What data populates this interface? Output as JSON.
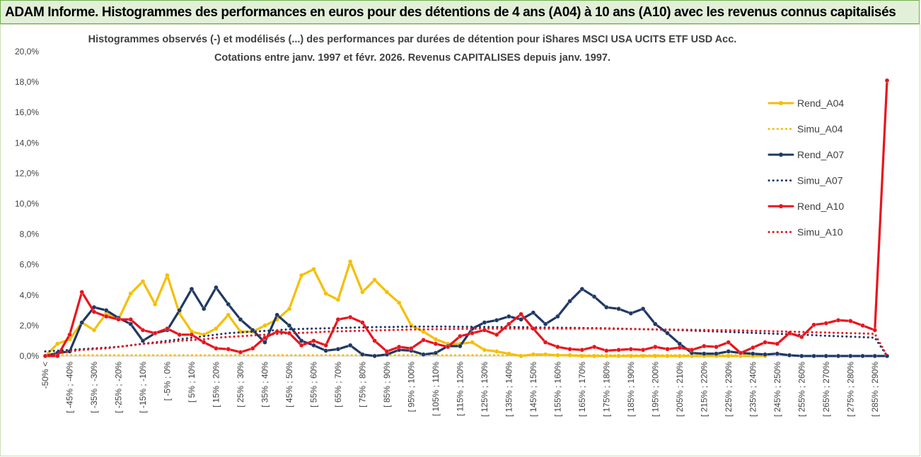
{
  "header": {
    "title": "ADAM Informe. Histogrammes des performances en euros pour des détentions de 4 ans (A04) à 10 ans (A10) avec les revenus connus capitalisés"
  },
  "chart_data": {
    "type": "line",
    "title": "Histogrammes observés (-) et modélisés (...) des performances par durées de détention pour iShares MSCI USA UCITS ETF USD Acc.",
    "subtitle": "Cotations entre janv. 1997 et févr. 2026. Revenus CAPITALISES depuis janv. 1997.",
    "categories": [
      "-50% <",
      null,
      "[ -45% ; -40%",
      null,
      "[ -35% ; -30%",
      null,
      "[ -25% ; -20%",
      null,
      "[ -15% ; -10%",
      null,
      "[ -5% ; 0%",
      null,
      "[ 5% ; 10%",
      null,
      "[ 15% ; 20%",
      null,
      "[ 25% ; 30%",
      null,
      "[ 35% ; 40%",
      null,
      "[ 45% ; 50%",
      null,
      "[ 55% ; 60%",
      null,
      "[ 65% ; 70%",
      null,
      "[ 75% ; 80%",
      null,
      "[ 85% ; 90%",
      null,
      "[ 95% ; 100%",
      null,
      "[ 105% ; 110%",
      null,
      "[ 115% ; 120%",
      null,
      "[ 125% ; 130%",
      null,
      "[ 135% ; 140%",
      null,
      "[ 145% ; 150%",
      null,
      "[ 155% ; 160%",
      null,
      "[ 165% ; 170%",
      null,
      "[ 175% ; 180%",
      null,
      "[ 185% ; 190%",
      null,
      "[ 195% ; 200%",
      null,
      "[ 205% ; 210%",
      null,
      "[ 215% ; 220%",
      null,
      "[ 225% ; 230%",
      null,
      "[ 235% ; 240%",
      null,
      "[ 245% ; 250%",
      null,
      "[ 255% ; 260%",
      null,
      "[ 265% ; 270%",
      null,
      "[ 275% ; 280%",
      null,
      "[ 285% ; 290%",
      null
    ],
    "ylim": [
      0,
      20
    ],
    "yticks": [
      {
        "value": 0,
        "label": "0,0%"
      },
      {
        "value": 2,
        "label": "2,0%"
      },
      {
        "value": 4,
        "label": "4,0%"
      },
      {
        "value": 6,
        "label": "6,0%"
      },
      {
        "value": 8,
        "label": "8,0%"
      },
      {
        "value": 10,
        "label": "10,0%"
      },
      {
        "value": 12,
        "label": "12,0%"
      },
      {
        "value": 14,
        "label": "14,0%"
      },
      {
        "value": 16,
        "label": "16,0%"
      },
      {
        "value": 18,
        "label": "18,0%"
      },
      {
        "value": 20,
        "label": "20,0%"
      }
    ],
    "grid": false,
    "legend": "right",
    "series": [
      {
        "name": "Rend_A04",
        "color": "#f5be00",
        "line_style": "solid",
        "markers": true,
        "values": [
          0.0,
          0.8,
          1.1,
          2.2,
          1.7,
          2.8,
          2.4,
          4.1,
          4.9,
          3.4,
          5.3,
          2.8,
          1.6,
          1.4,
          1.8,
          2.7,
          1.6,
          1.6,
          2.0,
          2.4,
          3.1,
          5.3,
          5.7,
          4.1,
          3.7,
          6.2,
          4.2,
          5.0,
          4.2,
          3.5,
          2.0,
          1.6,
          1.1,
          0.8,
          0.8,
          0.9,
          0.4,
          0.3,
          0.15,
          0.0,
          0.1,
          0.1,
          0.05,
          0.05,
          0.0,
          0.0,
          0.0,
          0.0,
          0.0,
          0.0,
          0.0,
          0.0,
          0.0,
          0.0,
          0.0,
          0.0,
          0.0,
          0.0,
          0.0,
          0.0,
          null,
          null,
          null,
          null,
          null,
          null,
          null,
          null,
          null,
          null
        ]
      },
      {
        "name": "Simu_A04",
        "color": "#f5be00",
        "line_style": "dotted",
        "markers": false,
        "values": [
          0.05,
          0.05,
          0.05,
          0.05,
          0.05,
          0.05,
          0.05,
          0.05,
          0.05,
          0.05,
          0.05,
          0.05,
          0.05,
          0.05,
          0.05,
          0.05,
          0.05,
          0.05,
          0.05,
          0.05,
          0.05,
          0.05,
          0.05,
          0.05,
          0.05,
          0.05,
          0.05,
          0.05,
          0.05,
          0.05,
          0.05,
          0.05,
          0.05,
          0.05,
          0.05,
          0.05,
          0.05,
          0.05,
          0.05,
          0.05,
          0.05,
          0.05,
          0.05,
          0.05,
          0.05,
          0.05,
          0.05,
          0.05,
          0.05,
          0.05,
          0.05,
          0.05,
          0.05,
          0.05,
          0.05,
          0.05,
          0.05,
          0.05,
          0.05,
          0.05,
          null,
          null,
          null,
          null,
          null,
          null,
          null,
          null,
          null,
          null
        ]
      },
      {
        "name": "Rend_A07",
        "color": "#1f3864",
        "line_style": "solid",
        "markers": true,
        "values": [
          0.0,
          0.2,
          0.3,
          2.2,
          3.2,
          3.0,
          2.5,
          2.1,
          1.0,
          1.5,
          1.7,
          3.0,
          4.4,
          3.1,
          4.5,
          3.4,
          2.4,
          1.7,
          0.9,
          2.7,
          2.0,
          1.0,
          0.7,
          0.35,
          0.45,
          0.7,
          0.1,
          0.0,
          0.1,
          0.4,
          0.35,
          0.1,
          0.2,
          0.65,
          0.65,
          1.8,
          2.2,
          2.35,
          2.6,
          2.4,
          2.85,
          2.1,
          2.6,
          3.6,
          4.4,
          3.9,
          3.2,
          3.1,
          2.8,
          3.1,
          2.1,
          1.5,
          0.8,
          0.2,
          0.15,
          0.15,
          0.3,
          0.2,
          0.15,
          0.1,
          0.15,
          0.05,
          0.0,
          0.0,
          0.0,
          0.0,
          0.0,
          0.0,
          0.0,
          0.0
        ]
      },
      {
        "name": "Simu_A07",
        "color": "#1f3864",
        "line_style": "dotted",
        "markers": false,
        "values": [
          0.3,
          0.35,
          0.4,
          0.45,
          0.5,
          0.55,
          0.6,
          0.7,
          0.8,
          0.9,
          1.0,
          1.1,
          1.2,
          1.3,
          1.4,
          1.5,
          1.55,
          1.6,
          1.65,
          1.7,
          1.75,
          1.78,
          1.8,
          1.82,
          1.84,
          1.86,
          1.88,
          1.9,
          1.9,
          1.92,
          1.93,
          1.93,
          1.93,
          1.93,
          1.92,
          1.92,
          1.91,
          1.9,
          1.9,
          1.89,
          1.88,
          1.87,
          1.86,
          1.85,
          1.84,
          1.83,
          1.82,
          1.8,
          1.78,
          1.76,
          1.74,
          1.72,
          1.7,
          1.67,
          1.64,
          1.61,
          1.58,
          1.55,
          1.52,
          1.49,
          1.46,
          1.43,
          1.4,
          1.37,
          1.33,
          1.3,
          1.27,
          1.24,
          1.2,
          0.0
        ]
      },
      {
        "name": "Rend_A10",
        "color": "#e8141c",
        "line_style": "solid",
        "markers": true,
        "values": [
          0.0,
          0.0,
          1.4,
          4.2,
          2.9,
          2.6,
          2.4,
          2.4,
          1.7,
          1.5,
          1.8,
          1.4,
          1.4,
          0.9,
          0.5,
          0.45,
          0.25,
          0.5,
          1.2,
          1.6,
          1.5,
          0.7,
          1.0,
          0.7,
          2.4,
          2.55,
          2.2,
          1.0,
          0.3,
          0.6,
          0.5,
          1.05,
          0.8,
          0.6,
          1.3,
          1.5,
          1.7,
          1.4,
          2.1,
          2.75,
          1.8,
          0.9,
          0.6,
          0.45,
          0.4,
          0.6,
          0.35,
          0.4,
          0.45,
          0.4,
          0.6,
          0.45,
          0.55,
          0.4,
          0.65,
          0.6,
          0.9,
          0.2,
          0.55,
          0.9,
          0.8,
          1.5,
          1.25,
          2.05,
          2.15,
          2.35,
          2.3,
          2.0,
          1.7,
          18.1
        ]
      },
      {
        "name": "Simu_A10",
        "color": "#e8141c",
        "line_style": "dotted",
        "markers": false,
        "values": [
          0.05,
          0.15,
          0.3,
          0.4,
          0.45,
          0.5,
          0.6,
          0.7,
          0.8,
          0.85,
          0.9,
          1.0,
          1.05,
          1.1,
          1.2,
          1.25,
          1.3,
          1.35,
          1.4,
          1.45,
          1.5,
          1.52,
          1.55,
          1.6,
          1.62,
          1.64,
          1.66,
          1.68,
          1.7,
          1.72,
          1.74,
          1.75,
          1.76,
          1.77,
          1.78,
          1.79,
          1.8,
          1.8,
          1.8,
          1.8,
          1.8,
          1.8,
          1.8,
          1.8,
          1.8,
          1.8,
          1.79,
          1.78,
          1.77,
          1.76,
          1.75,
          1.74,
          1.73,
          1.72,
          1.71,
          1.7,
          1.69,
          1.68,
          1.66,
          1.64,
          1.62,
          1.6,
          1.58,
          1.56,
          1.54,
          1.52,
          1.5,
          1.48,
          1.46,
          0.0
        ]
      }
    ]
  }
}
